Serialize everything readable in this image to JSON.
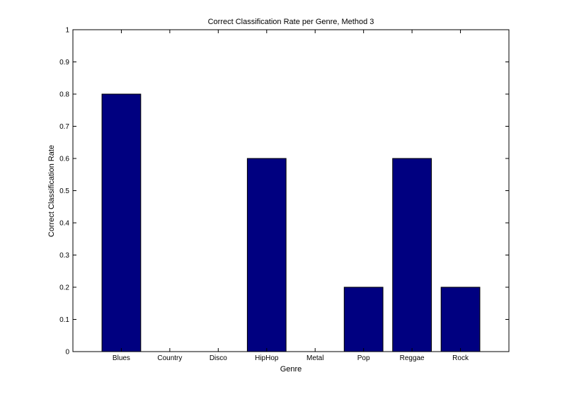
{
  "chart_data": {
    "type": "bar",
    "title": "Correct Classification Rate per Genre, Method 3",
    "xlabel": "Genre",
    "ylabel": "Correct Classification Rate",
    "categories": [
      "Blues",
      "Country",
      "Disco",
      "HipHop",
      "Metal",
      "Pop",
      "Reggae",
      "Rock"
    ],
    "values": [
      0.8,
      0,
      0,
      0.6,
      0,
      0.2,
      0.6,
      0.2
    ],
    "ylim": [
      0,
      1
    ],
    "yticks": [
      "0",
      "0.1",
      "0.2",
      "0.3",
      "0.4",
      "0.5",
      "0.6",
      "0.7",
      "0.8",
      "0.9",
      "1"
    ],
    "bar_color": "#000080",
    "grid": false,
    "legend": "none"
  }
}
